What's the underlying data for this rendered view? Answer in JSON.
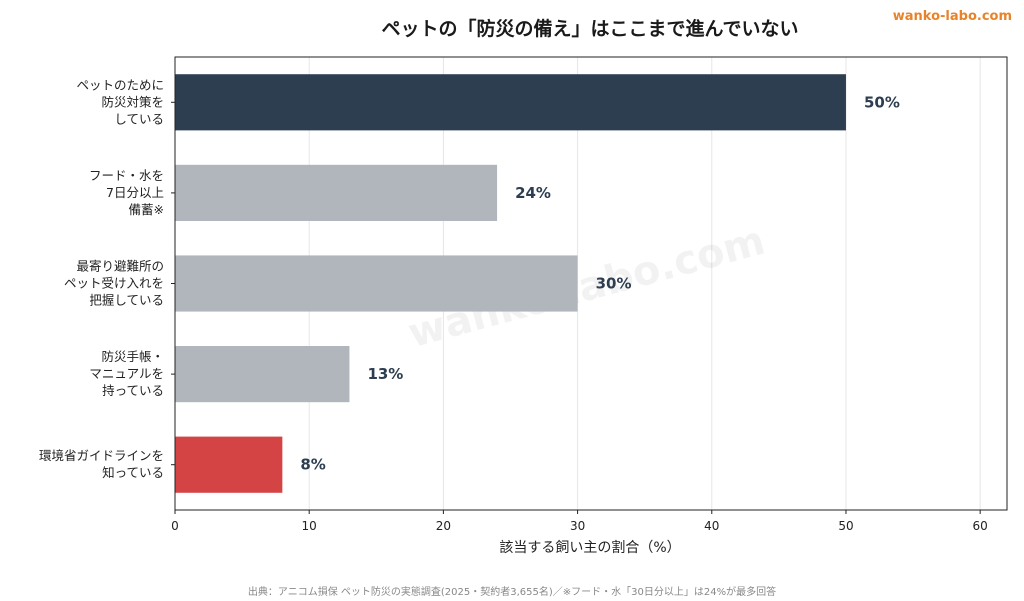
{
  "brand": "wanko-labo.com",
  "watermark": "wanko-labo.com",
  "source_note": "出典：アニコム損保 ペット防災の実態調査(2025・契約者3,655名)／※フード・水「30日分以上」は24%が最多回答",
  "colors": {
    "highlight": "#2d3e50",
    "neutral": "#b1b6bd",
    "alert": "#d54444",
    "brand": "#e8832a"
  },
  "chart_data": {
    "type": "bar",
    "orientation": "horizontal",
    "title": "ペットの「防災の備え」はここまで進んでいない",
    "xlabel": "該当する飼い主の割合（%）",
    "ylabel": "",
    "xlim": [
      0,
      62
    ],
    "xticks": [
      0,
      10,
      20,
      30,
      40,
      50,
      60
    ],
    "grid": "vertical",
    "legend": "none",
    "categories": [
      [
        "ペットのために",
        "防災対策を",
        "している"
      ],
      [
        "フード・水を",
        "7日分以上",
        "備蓄※"
      ],
      [
        "最寄り避難所の",
        "ペット受け入れを",
        "把握している"
      ],
      [
        "防災手帳・",
        "マニュアルを",
        "持っている"
      ],
      [
        "環境省ガイドラインを",
        "知っている"
      ]
    ],
    "values": [
      50,
      24,
      30,
      13,
      8
    ],
    "value_labels": [
      "50%",
      "24%",
      "30%",
      "13%",
      "8%"
    ],
    "bar_colors": [
      "#2d3e50",
      "#b1b6bd",
      "#b1b6bd",
      "#b1b6bd",
      "#d54444"
    ]
  }
}
